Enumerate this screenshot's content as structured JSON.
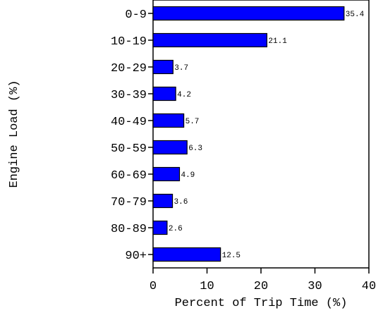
{
  "chart_data": {
    "type": "bar",
    "orientation": "horizontal",
    "categories": [
      "0-9",
      "10-19",
      "20-29",
      "30-39",
      "40-49",
      "50-59",
      "60-69",
      "70-79",
      "80-89",
      "90+"
    ],
    "values": [
      35.4,
      21.1,
      3.7,
      4.2,
      5.7,
      6.3,
      4.9,
      3.6,
      2.6,
      12.5
    ],
    "data_labels": [
      "35.4",
      "21.1",
      "3.7",
      "4.2",
      "5.7",
      "6.3",
      "4.9",
      "3.6",
      "2.6",
      "12.5"
    ],
    "xlabel": "Percent of Trip Time (%)",
    "ylabel": "Engine Load (%)",
    "xlim": [
      0,
      40
    ],
    "xticks": [
      "0",
      "10",
      "20",
      "30",
      "40"
    ],
    "grid": false,
    "bar_color": "#0000ff",
    "bar_edge_color": "#000000"
  }
}
